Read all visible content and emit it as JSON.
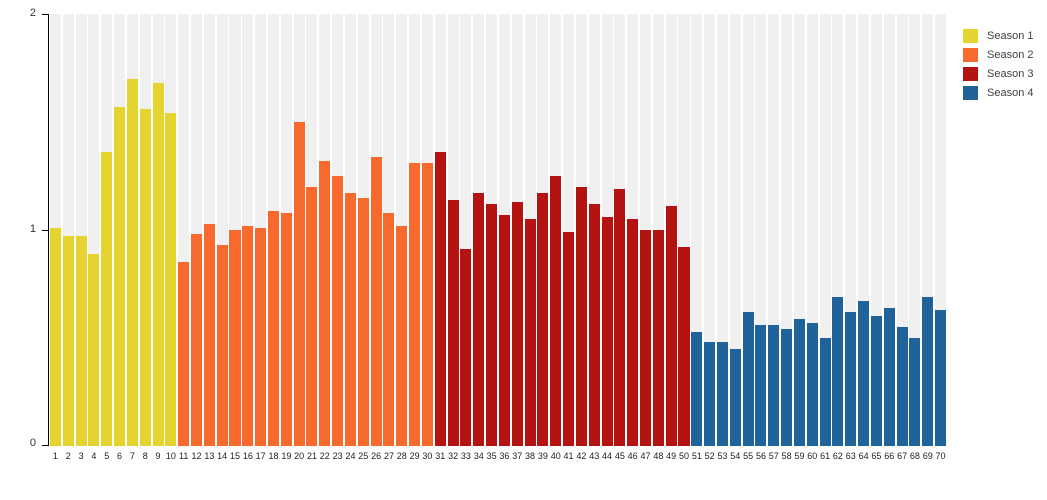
{
  "chart_data": {
    "type": "bar",
    "title": "",
    "xlabel": "",
    "ylabel": "",
    "ylim": [
      0,
      2
    ],
    "ytick_labels": [
      "0",
      "1",
      "2"
    ],
    "grid": false,
    "legend_position": "top-right",
    "background_stripe_color": "#F0F0F0",
    "axis_color": "#000000",
    "categories": [
      1,
      2,
      3,
      4,
      5,
      6,
      7,
      8,
      9,
      10,
      11,
      12,
      13,
      14,
      15,
      16,
      17,
      18,
      19,
      20,
      21,
      22,
      23,
      24,
      25,
      26,
      27,
      28,
      29,
      30,
      31,
      32,
      33,
      34,
      35,
      36,
      37,
      38,
      39,
      40,
      41,
      42,
      43,
      44,
      45,
      46,
      47,
      48,
      49,
      50,
      51,
      52,
      53,
      54,
      55,
      56,
      57,
      58,
      59,
      60,
      61,
      62,
      63,
      64,
      65,
      66,
      67,
      68,
      69,
      70
    ],
    "series": [
      {
        "name": "Season 1",
        "color": "#E5D32F",
        "values": [
          1.01,
          0.97,
          0.97,
          0.89,
          1.36,
          1.57,
          1.7,
          1.56,
          1.68,
          1.54
        ]
      },
      {
        "name": "Season 2",
        "color": "#F8692D",
        "values": [
          0.85,
          0.98,
          1.03,
          0.93,
          1.0,
          1.02,
          1.01,
          1.09,
          1.08,
          1.5,
          1.2,
          1.32,
          1.25,
          1.17,
          1.15,
          1.34,
          1.08,
          1.02,
          1.31,
          1.31
        ]
      },
      {
        "name": "Season 3",
        "color": "#B51212",
        "values": [
          1.36,
          1.14,
          0.91,
          1.17,
          1.12,
          1.07,
          1.13,
          1.05,
          1.17,
          1.25,
          0.99,
          1.2,
          1.12,
          1.06,
          1.19,
          1.05,
          1.0,
          1.0,
          1.11,
          0.92
        ]
      },
      {
        "name": "Season 4",
        "color": "#20639B",
        "values": [
          0.53,
          0.48,
          0.48,
          0.45,
          0.62,
          0.56,
          0.56,
          0.54,
          0.59,
          0.57,
          0.5,
          0.69,
          0.62,
          0.67,
          0.6,
          0.64,
          0.55,
          0.5,
          0.69,
          0.63
        ]
      }
    ]
  }
}
